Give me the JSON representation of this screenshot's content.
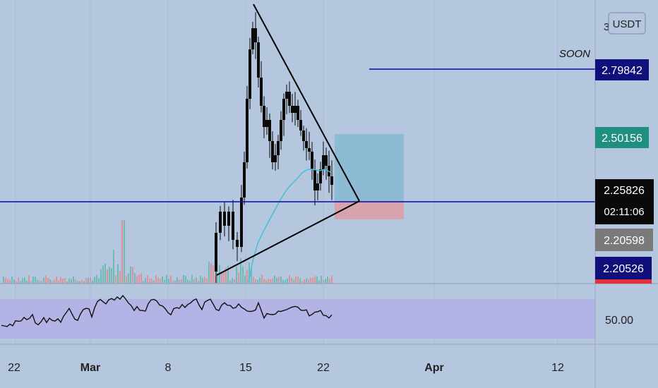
{
  "currency_button": "USDT",
  "annotation": "SOON",
  "colors": {
    "background": "#b5c6df",
    "candle": "#0a0a0a",
    "ma_line": "#3fc1d6",
    "level_line": "#0a0aa0",
    "target_box": "#7fb4cf",
    "stop_box": "#d9a3ad",
    "rsi_band": "#b3b3e6",
    "vol_up": "#5fb8b0",
    "vol_down": "#e08b8b"
  },
  "chart_data": [
    {
      "type": "candlestick",
      "x_ticks": [
        "22",
        "Mar",
        "8",
        "15",
        "22",
        "Apr",
        "12"
      ],
      "price_labels": [
        {
          "value": "2.79842",
          "style": "navy"
        },
        {
          "value": "2.50156",
          "style": "teal"
        },
        {
          "value": "2.25826",
          "style": "black"
        },
        {
          "value": "02:11:06",
          "style": "black"
        },
        {
          "value": "2.20598",
          "style": "gray"
        },
        {
          "value": "2.20526",
          "style": "navy"
        }
      ],
      "axis_partial_label": "3",
      "levels": [
        {
          "price": 2.79842,
          "label": "SOON"
        },
        {
          "price": 2.20526
        }
      ],
      "target_zone": {
        "from": 2.20526,
        "to": 2.50156
      },
      "stop_zone": {
        "from": 2.05,
        "to": 2.20526
      },
      "pattern": "symmetrical triangle"
    },
    {
      "type": "line",
      "name": "RSI",
      "y_tick": "50.00",
      "band": [
        30,
        70
      ]
    }
  ]
}
